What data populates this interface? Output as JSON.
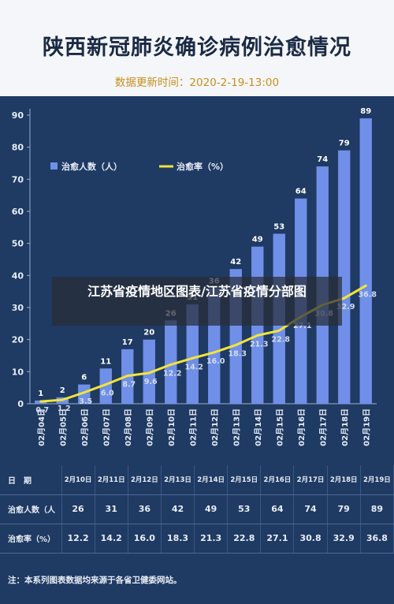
{
  "header": {
    "title": "陕西新冠肺炎确诊病例治愈情况",
    "update_label": "数据更新时间：",
    "update_value": "2020-2-19-13:00"
  },
  "overlay_text": "江苏省疫情地区图表/江苏省疫情分部图",
  "chart_data": {
    "type": "bar",
    "categories": [
      "02月04日",
      "02月05日",
      "02月06日",
      "02月07日",
      "02月08日",
      "02月09日",
      "02月10日",
      "02月11日",
      "02月12日",
      "02月13日",
      "02月14日",
      "02月15日",
      "02月16日",
      "02月17日",
      "02月18日",
      "02月19日"
    ],
    "series": [
      {
        "name": "治愈人数（人）",
        "type": "bar",
        "values": [
          1,
          2,
          6,
          11,
          17,
          20,
          26,
          31,
          36,
          42,
          49,
          53,
          64,
          74,
          79,
          89
        ],
        "color": "#6f8fe8"
      },
      {
        "name": "治愈率（%）",
        "type": "line",
        "values": [
          0.7,
          1.2,
          3.5,
          6.0,
          8.7,
          9.6,
          12.2,
          14.2,
          16.0,
          18.3,
          21.3,
          22.8,
          27.1,
          30.8,
          32.9,
          36.8
        ],
        "color": "#f2e43a"
      }
    ],
    "ylim": [
      0,
      90
    ],
    "yticks": [
      0,
      10,
      20,
      30,
      40,
      50,
      60,
      70,
      80,
      90
    ],
    "legend_position": "top-left",
    "grid": false
  },
  "table": {
    "row_headers": [
      "日　期",
      "治愈人数（人",
      "治愈率（%）"
    ],
    "dates": [
      "2月10日",
      "2月11日",
      "2月12日",
      "2月13日",
      "2月14日",
      "2月15日",
      "2月16日",
      "2月17日",
      "2月18日",
      "2月19日"
    ],
    "counts": [
      "26",
      "31",
      "36",
      "42",
      "49",
      "53",
      "64",
      "74",
      "79",
      "89"
    ],
    "rates": [
      "12.2",
      "14.2",
      "16.0",
      "18.3",
      "21.3",
      "22.8",
      "27.1",
      "30.8",
      "32.9",
      "36.8"
    ]
  },
  "note": "注：本系列图表数据均来源于各省卫健委网站。"
}
